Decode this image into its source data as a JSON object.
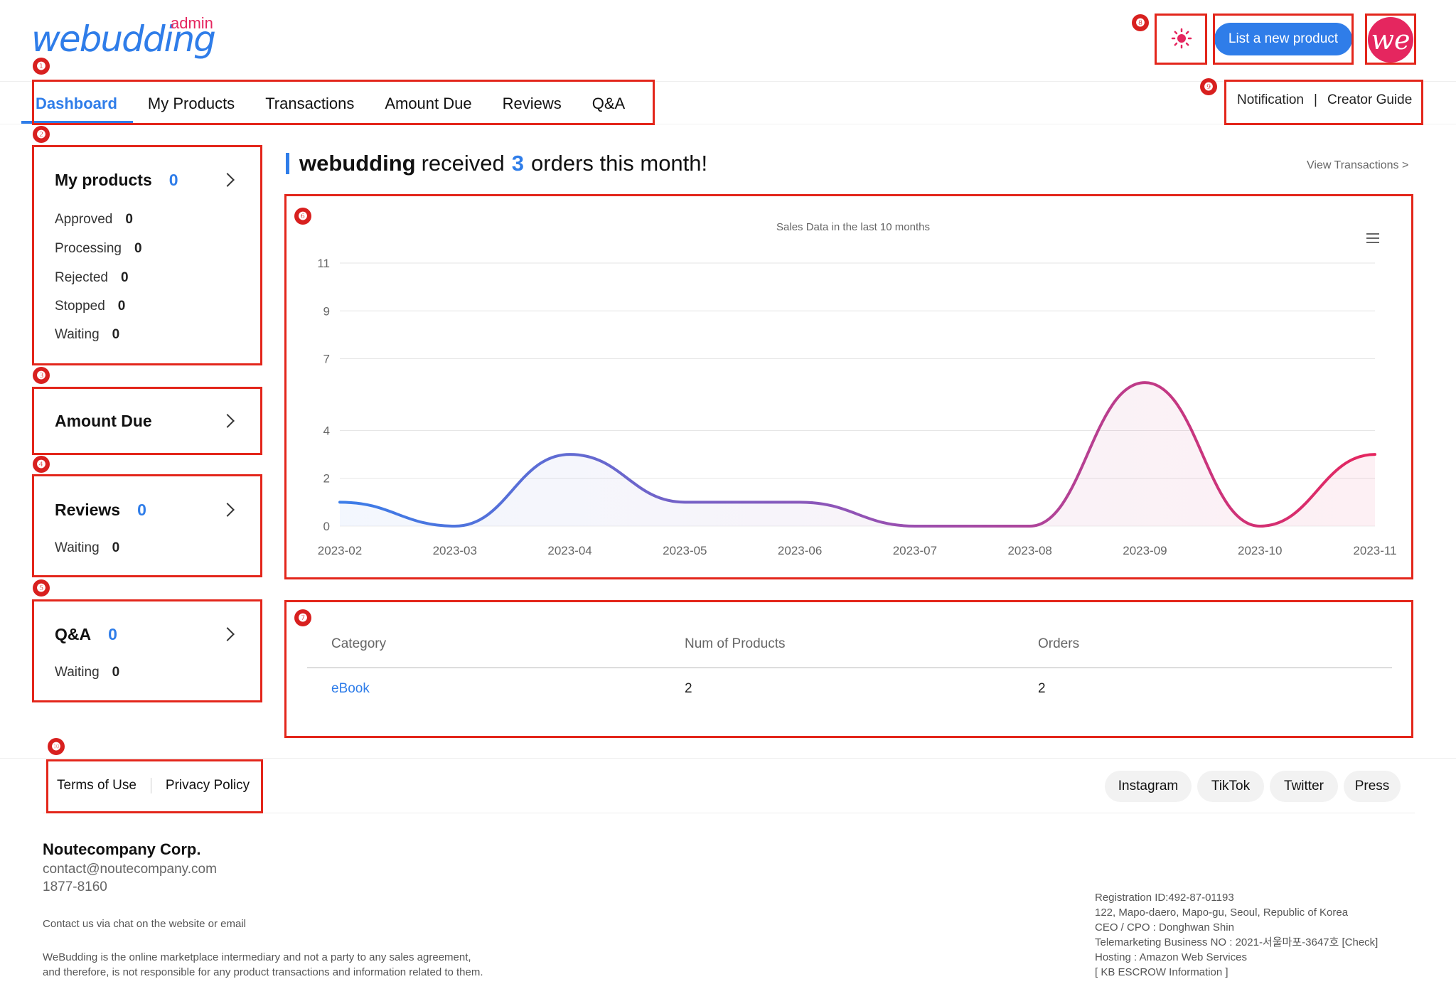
{
  "brand": {
    "logo": "webudding",
    "tag": "admin"
  },
  "header": {
    "list_button": "List a new product",
    "avatar_text": "we",
    "links": [
      "Notification",
      "Creator Guide"
    ],
    "links_separator": "|"
  },
  "nav": {
    "items": [
      "Dashboard",
      "My Products",
      "Transactions",
      "Amount Due",
      "Reviews",
      "Q&A"
    ],
    "active": "Dashboard"
  },
  "markers": [
    "❶",
    "❷",
    "❸",
    "❹",
    "❺",
    "❻",
    "❼",
    "❽",
    "❾",
    "❿"
  ],
  "sidebar": {
    "products": {
      "title": "My products",
      "count": "0",
      "rows": [
        {
          "label": "Approved",
          "value": "0"
        },
        {
          "label": "Processing",
          "value": "0"
        },
        {
          "label": "Rejected",
          "value": "0"
        },
        {
          "label": "Stopped",
          "value": "0"
        },
        {
          "label": "Waiting",
          "value": "0"
        }
      ]
    },
    "amount_due": {
      "title": "Amount Due"
    },
    "reviews": {
      "title": "Reviews",
      "count": "0",
      "waiting_label": "Waiting",
      "waiting_value": "0"
    },
    "qa": {
      "title": "Q&A",
      "count": "0",
      "waiting_label": "Waiting",
      "waiting_value": "0"
    }
  },
  "main": {
    "headline": {
      "name": "webudding",
      "pre": "received",
      "count": "3",
      "post": "orders this month!"
    },
    "view_transactions": "View Transactions >"
  },
  "chart_data": {
    "type": "area",
    "title": "Sales Data in the last 10 months",
    "x": [
      "2023-02",
      "2023-03",
      "2023-04",
      "2023-05",
      "2023-06",
      "2023-07",
      "2023-08",
      "2023-09",
      "2023-10",
      "2023-11"
    ],
    "series": [
      {
        "values": [
          1,
          0,
          3,
          1,
          1,
          0,
          0,
          6,
          0,
          3
        ]
      }
    ],
    "y_ticks": [
      "0",
      "2",
      "4",
      "7",
      "9",
      "11"
    ],
    "ylim": [
      0,
      11
    ],
    "grid": true,
    "colors": [
      "#3b7de9",
      "#e5265f"
    ]
  },
  "table": {
    "headers": [
      "Category",
      "Num of Products",
      "Orders"
    ],
    "rows": [
      [
        "eBook",
        "2",
        "2"
      ]
    ]
  },
  "footer": {
    "links": [
      "Terms of Use",
      "Privacy Policy"
    ],
    "social": [
      "Instagram",
      "TikTok",
      "Twitter",
      "Press"
    ],
    "corp": "Noutecompany Corp.",
    "email": "contact@noutecompany.com",
    "phone": "1877-8160",
    "contact": "Contact us via  chat on the website or email",
    "disclaimer": [
      "WeBudding is the online marketplace intermediary and not a party to any sales agreement,",
      "and therefore, is not responsible for any product transactions and information related to them."
    ],
    "info": [
      "Registration ID:492-87-01193",
      "122, Mapo-daero, Mapo-gu, Seoul, Republic of Korea",
      "CEO / CPO : Donghwan Shin",
      "Telemarketing Business NO : 2021-서울마포-3647호 [Check]",
      "Hosting : Amazon Web Services",
      "[ KB ESCROW Information ]"
    ]
  }
}
